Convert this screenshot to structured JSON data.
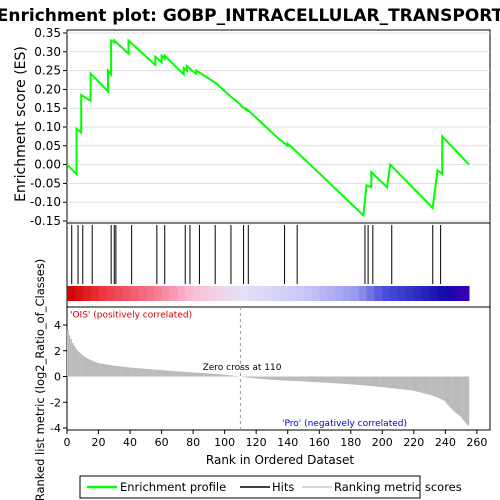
{
  "chart_data": {
    "type": "line",
    "title": "Enrichment plot: GOBP_INTRACELLULAR_TRANSPORT",
    "top_panel": {
      "ylabel": "Enrichment score (ES)",
      "ylim": [
        -0.15,
        0.35
      ],
      "yticks": [
        "0.35",
        "0.30",
        "0.25",
        "0.20",
        "0.15",
        "0.10",
        "0.05",
        "0.00",
        "-0.05",
        "-0.10",
        "-0.15"
      ],
      "series": [
        {
          "name": "Enrichment profile",
          "color": "#00ff00",
          "x": [
            0,
            6,
            6,
            9,
            9,
            15,
            15,
            26,
            26,
            28,
            28,
            30,
            30,
            39,
            39,
            56,
            56,
            60,
            60,
            62,
            62,
            74,
            74,
            76,
            76,
            79,
            79,
            82,
            82,
            84,
            84,
            95,
            95,
            104,
            104,
            110,
            110,
            114,
            114,
            134,
            134,
            140,
            140,
            143,
            143,
            188,
            188,
            190,
            190,
            193,
            193,
            203,
            203,
            205,
            205,
            232,
            232,
            235,
            235,
            238,
            238,
            255
          ],
          "y": [
            0.0,
            -0.025,
            0.095,
            0.085,
            0.185,
            0.17,
            0.242,
            0.195,
            0.25,
            0.24,
            0.33,
            0.325,
            0.33,
            0.295,
            0.33,
            0.265,
            0.287,
            0.272,
            0.29,
            0.282,
            0.29,
            0.24,
            0.257,
            0.25,
            0.262,
            0.252,
            0.25,
            0.242,
            0.25,
            0.245,
            0.245,
            0.215,
            0.215,
            0.18,
            0.18,
            0.16,
            0.158,
            0.145,
            0.148,
            0.07,
            0.07,
            0.05,
            0.055,
            0.045,
            0.045,
            -0.135,
            -0.135,
            -0.055,
            -0.055,
            -0.06,
            -0.02,
            -0.06,
            -0.06,
            0.0,
            0.0,
            -0.115,
            -0.115,
            -0.015,
            -0.015,
            -0.025,
            0.075,
            0.0
          ]
        }
      ]
    },
    "hits": {
      "name": "Hits",
      "positions": [
        3,
        7,
        10,
        16,
        28,
        30,
        31,
        41,
        57,
        62,
        75,
        78,
        84,
        94,
        104,
        112,
        115,
        138,
        146,
        189,
        191,
        194,
        206,
        232,
        237
      ]
    },
    "bottom_panel": {
      "ylabel": "Ranked list metric (log2_Ratio_of_Classes)",
      "ylim": [
        -4,
        4
      ],
      "yticks": [
        "4",
        "2",
        "0",
        "-2",
        "-4"
      ],
      "series_name": "Ranking metric scores",
      "zero_cross_label": "Zero cross at 110",
      "zero_cross": 110,
      "pos_label": "'OIS' (positively correlated)",
      "neg_label": "'Pro' (negatively correlated)",
      "metric_x": [
        1,
        2,
        4,
        6,
        8,
        10,
        12,
        15,
        20,
        25,
        30,
        40,
        50,
        60,
        70,
        80,
        90,
        100,
        105,
        110,
        115,
        120,
        130,
        140,
        150,
        160,
        170,
        180,
        190,
        200,
        210,
        220,
        225,
        230,
        235,
        240,
        242,
        245,
        248,
        250,
        252,
        254,
        255
      ],
      "metric_y": [
        3.6,
        3.2,
        2.6,
        2.2,
        1.9,
        1.7,
        1.5,
        1.3,
        1.05,
        0.95,
        0.85,
        0.7,
        0.6,
        0.5,
        0.4,
        0.32,
        0.24,
        0.15,
        0.08,
        0.0,
        -0.08,
        -0.15,
        -0.25,
        -0.32,
        -0.38,
        -0.45,
        -0.52,
        -0.6,
        -0.7,
        -0.82,
        -0.95,
        -1.1,
        -1.25,
        -1.4,
        -1.6,
        -1.9,
        -2.2,
        -2.6,
        -2.9,
        -3.1,
        -3.4,
        -3.7,
        -3.8
      ]
    },
    "xlabel": "Rank in Ordered Dataset",
    "xlim": [
      0,
      265
    ],
    "xticks": [
      "0",
      "20",
      "40",
      "60",
      "80",
      "100",
      "120",
      "140",
      "160",
      "180",
      "200",
      "220",
      "240",
      "260"
    ],
    "legend": {
      "placement": "bottom",
      "entries": [
        {
          "label": "Enrichment profile",
          "color": "#00ff00"
        },
        {
          "label": "Hits",
          "color": "#000000"
        },
        {
          "label": "Ranking metric scores",
          "color": "#cccccc"
        }
      ]
    }
  }
}
